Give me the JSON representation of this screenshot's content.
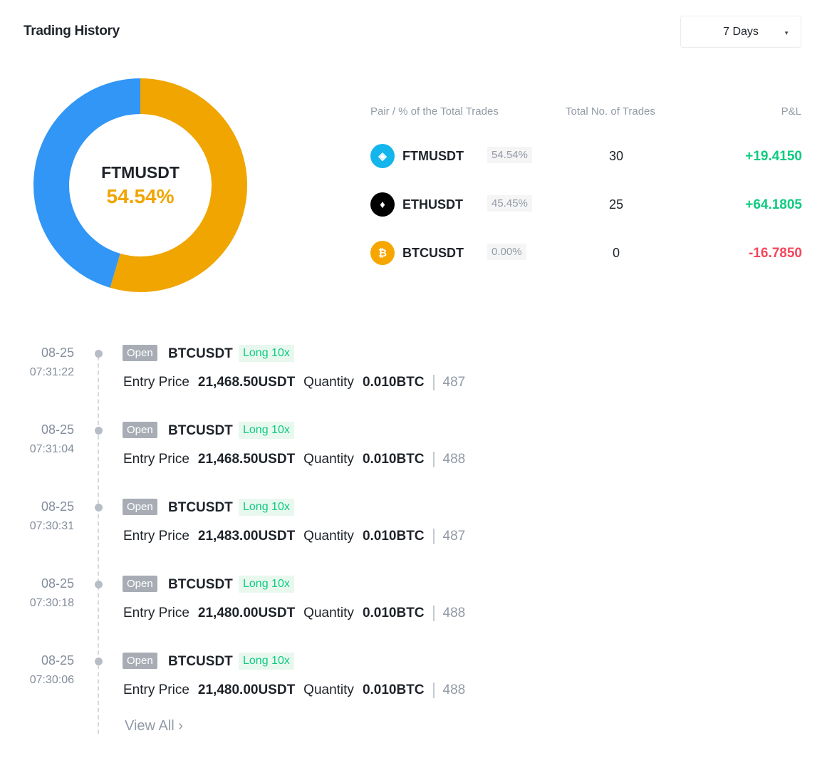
{
  "header": {
    "title": "Trading History",
    "range": "7 Days"
  },
  "donut": {
    "label": "FTMUSDT",
    "percent": "54.54%",
    "segments": [
      {
        "pair": "FTMUSDT",
        "value": 54.54,
        "color": "#f0a500"
      },
      {
        "pair": "ETHUSDT",
        "value": 45.45,
        "color": "#3196f5"
      },
      {
        "pair": "BTCUSDT",
        "value": 0,
        "color": "#f7931a"
      }
    ]
  },
  "table": {
    "headers": {
      "pair": "Pair / % of the Total Trades",
      "trades": "Total No. of Trades",
      "pnl": "P&L"
    },
    "rows": [
      {
        "pair": "FTMUSDT",
        "pct": "54.54%",
        "trades": "30",
        "pnl": "+19.4150",
        "pnl_color": "#0ecb81",
        "icon": "fantom-icon",
        "icon_color": "#13b5ec",
        "glyph": "◈"
      },
      {
        "pair": "ETHUSDT",
        "pct": "45.45%",
        "trades": "25",
        "pnl": "+64.1805",
        "pnl_color": "#0ecb81",
        "icon": "ethereum-icon",
        "icon_color": "#000000",
        "glyph": "♦"
      },
      {
        "pair": "BTCUSDT",
        "pct": "0.00%",
        "trades": "0",
        "pnl": "-16.7850",
        "pnl_color": "#f6465d",
        "icon": "bitcoin-icon",
        "icon_color": "#f7a600",
        "glyph": "₿"
      }
    ]
  },
  "history": [
    {
      "date": "08-25",
      "time": "07:31:22",
      "status": "Open",
      "symbol": "BTCUSDT",
      "leverage": "Long 10x",
      "entry_label": "Entry Price",
      "entry": "21,468.50USDT",
      "qty_label": "Quantity",
      "qty": "0.010BTC",
      "id": "487"
    },
    {
      "date": "08-25",
      "time": "07:31:04",
      "status": "Open",
      "symbol": "BTCUSDT",
      "leverage": "Long 10x",
      "entry_label": "Entry Price",
      "entry": "21,468.50USDT",
      "qty_label": "Quantity",
      "qty": "0.010BTC",
      "id": "488"
    },
    {
      "date": "08-25",
      "time": "07:30:31",
      "status": "Open",
      "symbol": "BTCUSDT",
      "leverage": "Long 10x",
      "entry_label": "Entry Price",
      "entry": "21,483.00USDT",
      "qty_label": "Quantity",
      "qty": "0.010BTC",
      "id": "487"
    },
    {
      "date": "08-25",
      "time": "07:30:18",
      "status": "Open",
      "symbol": "BTCUSDT",
      "leverage": "Long 10x",
      "entry_label": "Entry Price",
      "entry": "21,480.00USDT",
      "qty_label": "Quantity",
      "qty": "0.010BTC",
      "id": "488"
    },
    {
      "date": "08-25",
      "time": "07:30:06",
      "status": "Open",
      "symbol": "BTCUSDT",
      "leverage": "Long 10x",
      "entry_label": "Entry Price",
      "entry": "21,480.00USDT",
      "qty_label": "Quantity",
      "qty": "0.010BTC",
      "id": "488"
    }
  ],
  "view_all": "View All ›"
}
